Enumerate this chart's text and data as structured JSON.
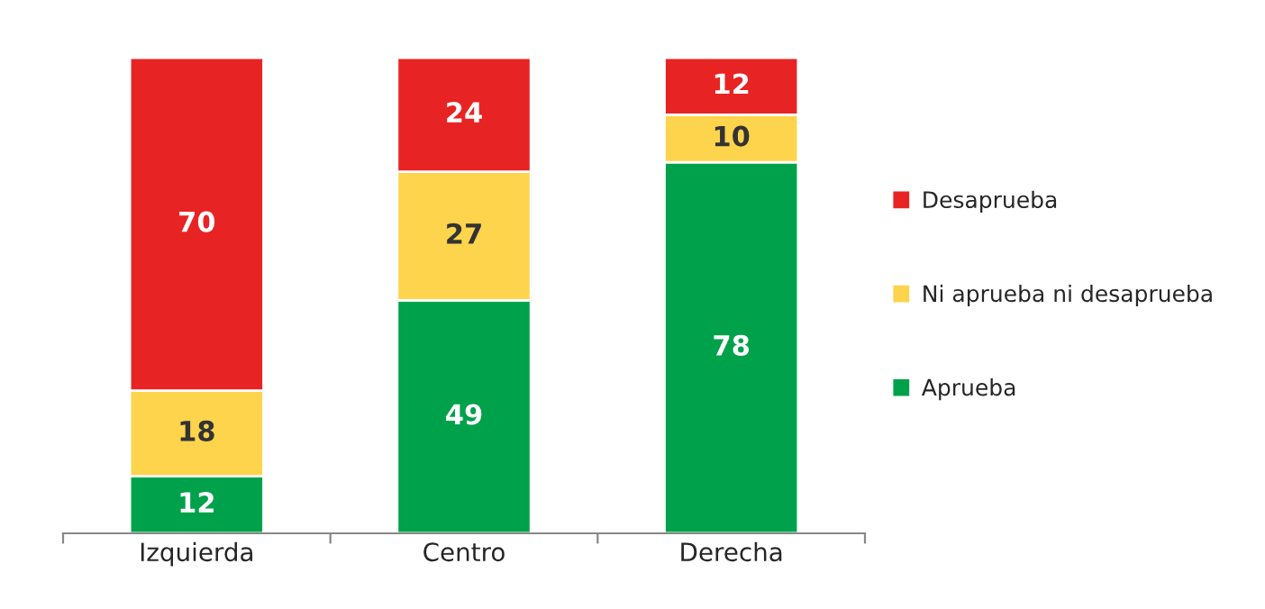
{
  "chart_data": {
    "type": "bar",
    "stacked": true,
    "categories": [
      "Izquierda",
      "Centro",
      "Derecha"
    ],
    "series": [
      {
        "name": "Aprueba",
        "color": "#00a14b",
        "values": [
          12,
          49,
          78
        ]
      },
      {
        "name": "Ni aprueba ni desaprueba",
        "color": "#fdd44c",
        "values": [
          18,
          27,
          10
        ]
      },
      {
        "name": "Desaprueba",
        "color": "#e82323",
        "values": [
          70,
          24,
          12
        ]
      }
    ],
    "data_labels": true,
    "legend": "right",
    "tick_labels": "x",
    "grid": false
  }
}
